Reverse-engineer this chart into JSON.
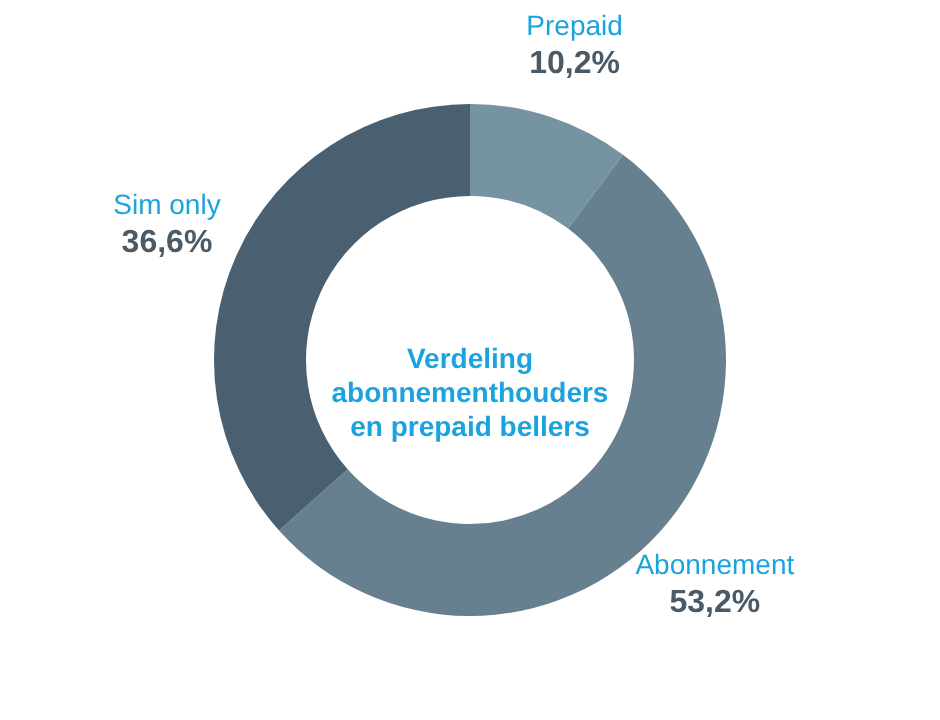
{
  "chart_data": {
    "type": "donut",
    "title": "Verdeling abonnementhouders en prepaid bellers",
    "categories": [
      "Prepaid",
      "Abonnement",
      "Sim only"
    ],
    "values": [
      10.2,
      53.2,
      36.6
    ],
    "value_labels": [
      "10,2%",
      "53,2%",
      "36,6%"
    ],
    "colors": [
      "#7593a0",
      "#67808f",
      "#4a6070"
    ]
  }
}
